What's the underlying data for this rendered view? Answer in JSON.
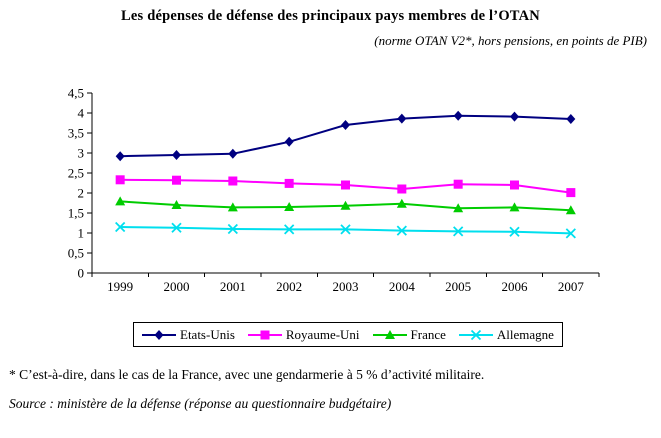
{
  "title": "Les dépenses de défense des principaux pays membres de l’OTAN",
  "subtitle": "(norme OTAN V2*, hors pensions, en points de PIB)",
  "footnote": "* C’est-à-dire, dans le cas de la France, avec une gendarmerie à 5 % d’activité militaire.",
  "source": "Source : ministère de la défense (réponse au questionnaire budgétaire)",
  "chart_data": {
    "type": "line",
    "categories": [
      "1999",
      "2000",
      "2001",
      "2002",
      "2003",
      "2004",
      "2005",
      "2006",
      "2007"
    ],
    "series": [
      {
        "name": "Etats-Unis",
        "color": "#000080",
        "marker": "diamond",
        "values": [
          2.92,
          2.95,
          2.98,
          3.28,
          3.7,
          3.86,
          3.93,
          3.91,
          3.85
        ]
      },
      {
        "name": "Royaume-Uni",
        "color": "#FF00FF",
        "marker": "square",
        "values": [
          2.33,
          2.32,
          2.3,
          2.24,
          2.2,
          2.1,
          2.22,
          2.2,
          2.01
        ]
      },
      {
        "name": "France",
        "color": "#00CC00",
        "marker": "triangle",
        "values": [
          1.79,
          1.7,
          1.64,
          1.65,
          1.68,
          1.73,
          1.62,
          1.64,
          1.57
        ]
      },
      {
        "name": "Allemagne",
        "color": "#00DFEE",
        "marker": "x",
        "values": [
          1.15,
          1.13,
          1.1,
          1.09,
          1.09,
          1.06,
          1.04,
          1.03,
          0.99
        ]
      }
    ],
    "title": "Les dépenses de défense des principaux pays membres de l’OTAN",
    "xlabel": "",
    "ylabel": "",
    "ylim": [
      0,
      4.5
    ],
    "ytick_step": 0.5,
    "ytick_labels": [
      "0",
      "0,5",
      "1",
      "1,5",
      "2",
      "2,5",
      "3",
      "3,5",
      "4",
      "4,5"
    ],
    "grid": false,
    "legend_position": "bottom"
  }
}
